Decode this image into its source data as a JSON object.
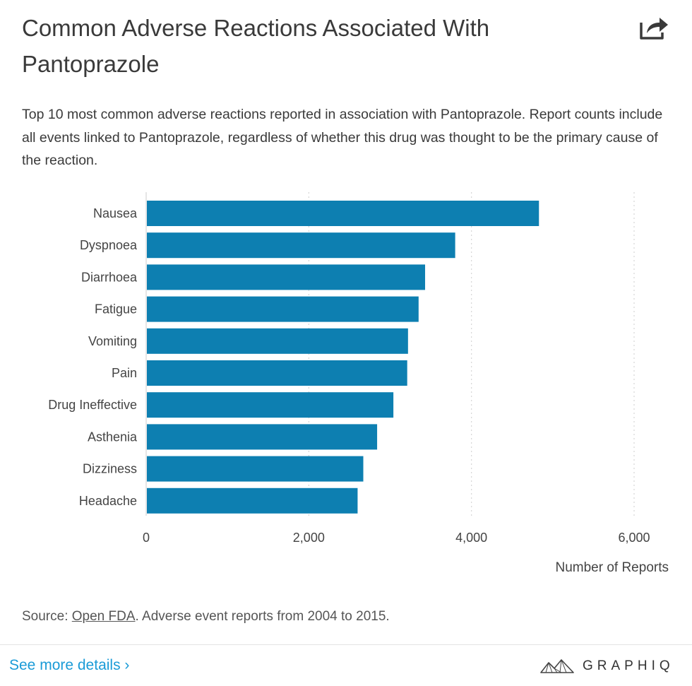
{
  "header": {
    "title": "Common Adverse Reactions Associated With Pantoprazole",
    "subtitle": "Top 10 most common adverse reactions reported in association with Pantoprazole. Report counts include all events linked to Pantoprazole, regardless of whether this drug was thought to be the primary cause of the reaction."
  },
  "chart_data": {
    "type": "bar",
    "orientation": "horizontal",
    "title": "Common Adverse Reactions Associated With Pantoprazole",
    "categories": [
      "Nausea",
      "Dyspnoea",
      "Diarrhoea",
      "Fatigue",
      "Vomiting",
      "Pain",
      "Drug Ineffective",
      "Asthenia",
      "Dizziness",
      "Headache"
    ],
    "values": [
      4830,
      3800,
      3430,
      3350,
      3220,
      3210,
      3040,
      2840,
      2670,
      2600
    ],
    "xlabel": "Number of Reports",
    "ylabel": "",
    "xlim": [
      0,
      6000
    ],
    "xticks": [
      0,
      2000,
      4000,
      6000
    ],
    "xtick_labels": [
      "0",
      "2,000",
      "4,000",
      "6,000"
    ],
    "bar_color": "#0d7fb1",
    "grid": "vertical dotted"
  },
  "footer": {
    "source_prefix": "Source: ",
    "source_link": "Open FDA",
    "source_suffix": ". Adverse event reports from 2004 to 2015.",
    "more_link": "See more details ›",
    "brand": "GRAPHIQ"
  },
  "colors": {
    "accent": "#1a9bd7",
    "bar": "#0d7fb1"
  }
}
